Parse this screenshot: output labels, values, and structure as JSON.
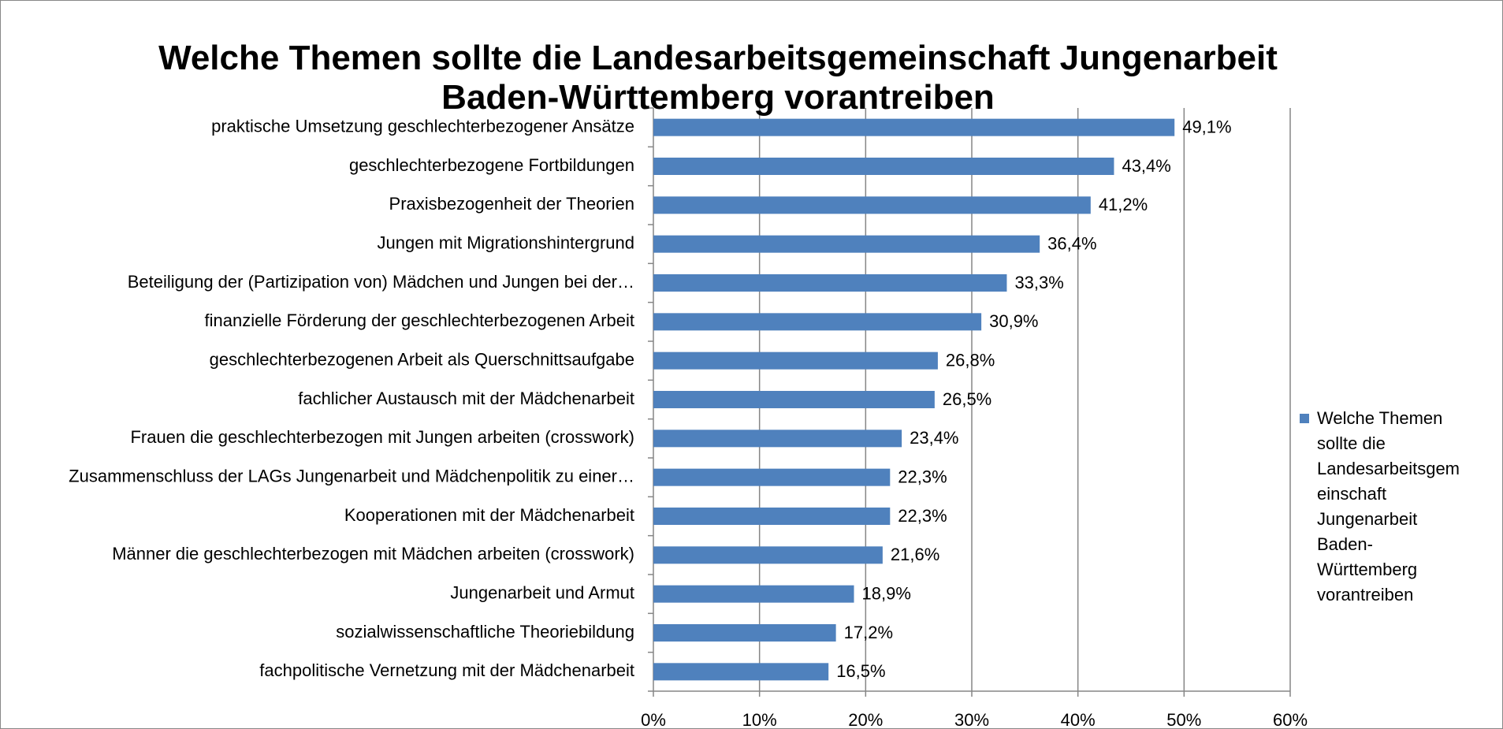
{
  "chart_data": {
    "type": "bar",
    "orientation": "horizontal",
    "title": "Welche Themen sollte die Landesarbeitsgemeinschaft Jungenarbeit Baden-Württemberg vorantreiben",
    "categories": [
      "praktische Umsetzung geschlechterbezogener Ansätze",
      "geschlechterbezogene Fortbildungen",
      "Praxisbezogenheit der Theorien",
      "Jungen mit Migrationshintergrund",
      "Beteiligung der (Partizipation von) Mädchen und Jungen bei der…",
      "finanzielle Förderung der geschlechterbezogenen Arbeit",
      "geschlechterbezogenen Arbeit als Querschnittsaufgabe",
      "fachlicher Austausch mit der Mädchenarbeit",
      "Frauen die geschlechterbezogen mit Jungen arbeiten (crosswork)",
      "Zusammenschluss der LAGs Jungenarbeit und Mädchenpolitik zu einer…",
      "Kooperationen mit der Mädchenarbeit",
      "Männer die geschlechterbezogen mit Mädchen arbeiten (crosswork)",
      "Jungenarbeit und Armut",
      "sozialwissenschaftliche Theoriebildung",
      "fachpolitische Vernetzung mit der Mädchenarbeit"
    ],
    "series": [
      {
        "name": "Welche Themen sollte die Landesarbeitsgemeinschaft Jungenarbeit Baden-Württemberg vorantreiben",
        "color": "#4f81bd",
        "values": [
          49.1,
          43.4,
          41.2,
          36.4,
          33.3,
          30.9,
          26.8,
          26.5,
          23.4,
          22.3,
          22.3,
          21.6,
          18.9,
          17.2,
          16.5
        ],
        "value_labels": [
          "49,1%",
          "43,4%",
          "41,2%",
          "36,4%",
          "33,3%",
          "30,9%",
          "26,8%",
          "26,5%",
          "23,4%",
          "22,3%",
          "22,3%",
          "21,6%",
          "18,9%",
          "17,2%",
          "16,5%"
        ]
      }
    ],
    "xlim": [
      0,
      60
    ],
    "xticks": [
      {
        "value": 0,
        "label": "0%"
      },
      {
        "value": 10,
        "label": "10%"
      },
      {
        "value": 20,
        "label": "20%"
      },
      {
        "value": 30,
        "label": "30%"
      },
      {
        "value": 40,
        "label": "40%"
      },
      {
        "value": 50,
        "label": "50%"
      },
      {
        "value": 60,
        "label": "60%"
      }
    ],
    "grid": true,
    "legend": "right"
  }
}
